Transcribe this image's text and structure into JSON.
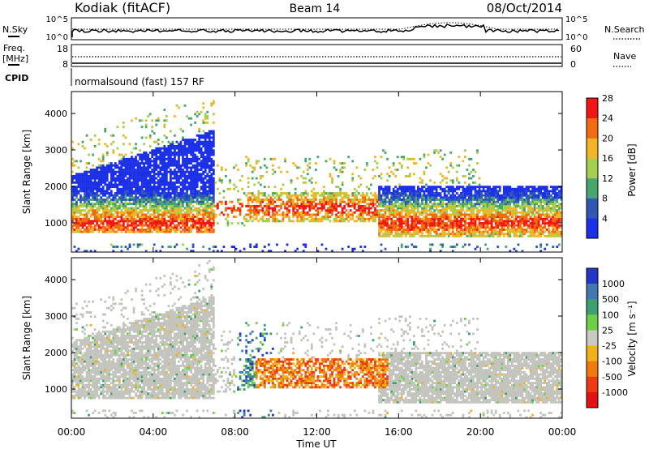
{
  "header": {
    "station": "Kodiak (fitACF)",
    "beam": "Beam 14",
    "date": "08/Oct/2014"
  },
  "summary_panels": {
    "nsky_label": "N.Sky",
    "nsearch_label": "N.Search",
    "nsky_ticks": [
      "10^5",
      "10^0"
    ],
    "nsearch_ticks": [
      "10^5",
      "10^0"
    ],
    "freq_label_line1": "Freq.",
    "freq_label_line2": "[MHz]",
    "freq_ticks": [
      "18",
      "8"
    ],
    "nave_label": "Nave",
    "nave_ticks": [
      "60",
      "0"
    ],
    "cpid_label": "CPID",
    "cpid_text": "normalsound (fast) 157 RF"
  },
  "chart_data": [
    {
      "type": "heatmap",
      "name": "power",
      "ylabel": "Slant Range [km]",
      "ylim": [
        200,
        4600
      ],
      "yticks": [
        1000,
        2000,
        3000,
        4000
      ],
      "colorbar_label": "Power [dB]",
      "colorbar_ticks": [
        "4",
        "8",
        "12",
        "16",
        "20",
        "24",
        "28"
      ],
      "colors": [
        "#1c30e8",
        "#2f58b4",
        "#47a56e",
        "#a6cf4e",
        "#f2b526",
        "#ef6c10",
        "#f01616"
      ],
      "gap_color": "#ffffff"
    },
    {
      "type": "heatmap",
      "name": "velocity",
      "ylabel": "Slant Range [km]",
      "ylim": [
        200,
        4600
      ],
      "yticks": [
        1000,
        2000,
        3000,
        4000
      ],
      "colorbar_label": "Velocity [m s⁻¹]",
      "colorbar_ticks": [
        "1000",
        "500",
        "100",
        "25",
        "-25",
        "-100",
        "-500",
        "-1000"
      ],
      "colors": [
        "#2336c8",
        "#3f79b0",
        "#3ea06e",
        "#6fcf45",
        "#c9c9c3",
        "#f0b11c",
        "#ee7a10",
        "#ee3a14",
        "#e01212"
      ],
      "ground_scatter_color": "#c4c4bf"
    }
  ],
  "xaxis": {
    "label": "Time UT",
    "ticks": [
      "00:00",
      "04:00",
      "08:00",
      "12:00",
      "16:00",
      "20:00",
      "00:00"
    ]
  }
}
